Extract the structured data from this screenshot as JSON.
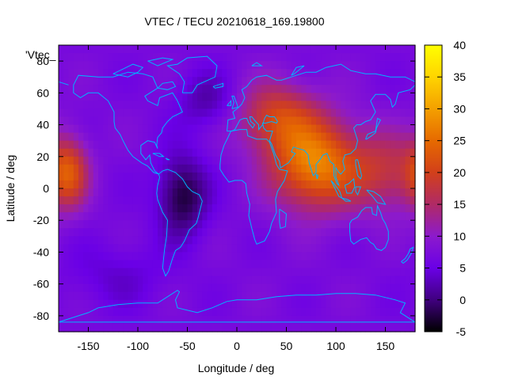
{
  "chart_data": {
    "type": "heatmap",
    "title": "VTEC / TECU 20210618_169.19800",
    "xlabel": "Longitude / deg",
    "ylabel": "Latitude / deg",
    "series_label": "'Vtec_",
    "xlim": [
      -180,
      180
    ],
    "ylim": [
      -90,
      90
    ],
    "x_ticks": [
      -150,
      -100,
      -50,
      0,
      50,
      100,
      150
    ],
    "y_ticks": [
      -80,
      -60,
      -40,
      -20,
      0,
      20,
      40,
      60,
      80
    ],
    "colorbar": {
      "range": [
        -5,
        40
      ],
      "ticks": [
        -5,
        0,
        5,
        10,
        15,
        20,
        25,
        30,
        35,
        40
      ]
    },
    "palette": [
      "#000000",
      "#40007f",
      "#6a00e6",
      "#8c1acc",
      "#b02a66",
      "#d2401a",
      "#e66a00",
      "#f4a000",
      "#ffd400",
      "#ffff00"
    ],
    "coastline_color": "#00b4ff",
    "features": [
      {
        "lon": 80,
        "lat": 15,
        "amp": 20,
        "sx": 45,
        "sy": 28
      },
      {
        "lon": 40,
        "lat": 45,
        "amp": 12,
        "sx": 40,
        "sy": 22
      },
      {
        "lon": 150,
        "lat": 10,
        "amp": 9,
        "sx": 35,
        "sy": 25
      },
      {
        "lon": -170,
        "lat": 10,
        "amp": 14,
        "sx": 20,
        "sy": 22
      },
      {
        "lon": -55,
        "lat": -5,
        "amp": -10,
        "sx": 25,
        "sy": 25
      },
      {
        "lon": -30,
        "lat": 55,
        "amp": -5,
        "sx": 30,
        "sy": 18
      },
      {
        "lon": -120,
        "lat": -55,
        "amp": -3,
        "sx": 50,
        "sy": 20
      }
    ],
    "base_value": 7
  }
}
